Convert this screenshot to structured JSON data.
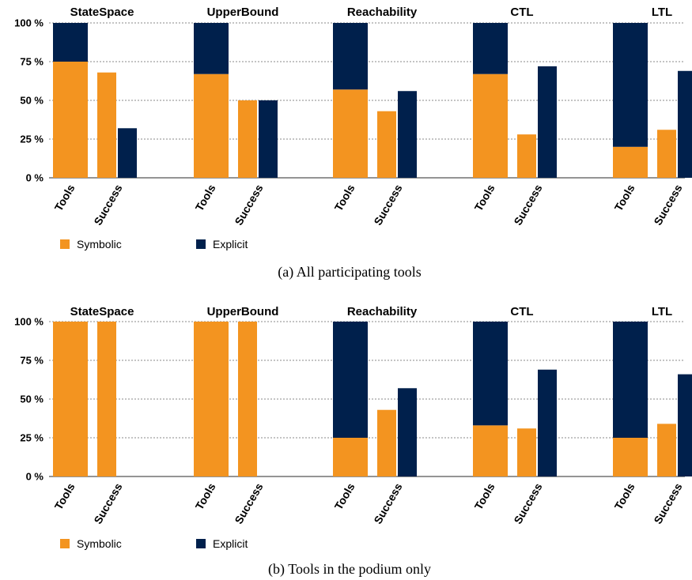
{
  "colors": {
    "symbolic": "#F39420",
    "explicit": "#00204C"
  },
  "chart_data": [
    {
      "type": "bar",
      "stacked_for": "Tools",
      "caption": "(a)  All participating tools",
      "groups": [
        "StateSpace",
        "UpperBound",
        "Reachability",
        "CTL",
        "LTL"
      ],
      "bar_labels": [
        "Tools",
        "Success"
      ],
      "series": [
        {
          "name": "Symbolic",
          "tools": [
            75,
            67,
            57,
            67,
            20
          ],
          "success": [
            68,
            50,
            43,
            28,
            31
          ]
        },
        {
          "name": "Explicit",
          "tools": [
            25,
            33,
            43,
            33,
            80
          ],
          "success": [
            32,
            50,
            56,
            72,
            69
          ]
        }
      ],
      "yticks": [
        "0 %",
        "25 %",
        "50 %",
        "75 %",
        "100 %"
      ],
      "ylim": [
        0,
        100
      ],
      "legend": [
        "Symbolic",
        "Explicit"
      ],
      "grid": true
    },
    {
      "type": "bar",
      "stacked_for": "Tools",
      "caption": "(b)  Tools in the podium only",
      "groups": [
        "StateSpace",
        "UpperBound",
        "Reachability",
        "CTL",
        "LTL"
      ],
      "bar_labels": [
        "Tools",
        "Success"
      ],
      "series": [
        {
          "name": "Symbolic",
          "tools": [
            100,
            100,
            25,
            33,
            25
          ],
          "success": [
            100,
            100,
            43,
            31,
            34
          ]
        },
        {
          "name": "Explicit",
          "tools": [
            0,
            0,
            75,
            67,
            75
          ],
          "success": [
            0,
            0,
            57,
            69,
            66
          ]
        }
      ],
      "yticks": [
        "0 %",
        "25 %",
        "50 %",
        "75 %",
        "100 %"
      ],
      "ylim": [
        0,
        100
      ],
      "legend": [
        "Symbolic",
        "Explicit"
      ],
      "grid": true
    }
  ]
}
